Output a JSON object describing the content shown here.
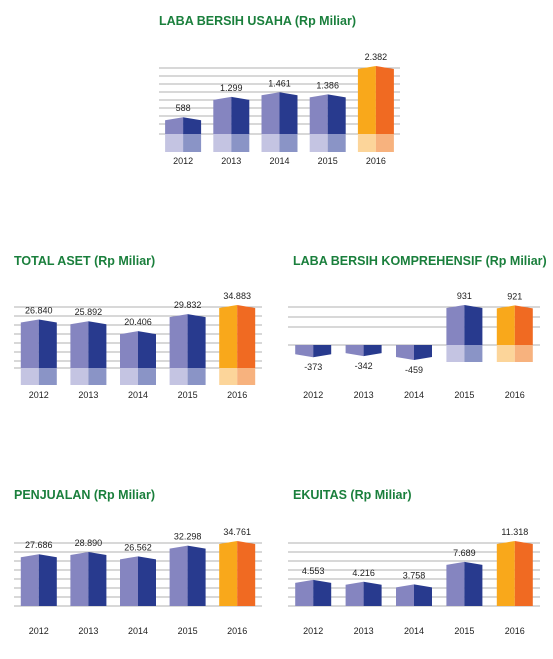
{
  "chart_data": [
    {
      "id": "laba-bersih-usaha",
      "type": "bar",
      "title": "LABA BERSIH USAHA (Rp Miliar)",
      "categories": [
        "2012",
        "2013",
        "2014",
        "2015",
        "2016"
      ],
      "values": [
        588,
        1299,
        1461,
        1386,
        2382
      ],
      "value_labels": [
        "588",
        "1.299",
        "1.461",
        "1.386",
        "2.382"
      ],
      "highlight_index": 4,
      "grid": true
    },
    {
      "id": "total-aset",
      "type": "bar",
      "title": "TOTAL ASET (Rp Miliar)",
      "categories": [
        "2012",
        "2013",
        "2014",
        "2015",
        "2016"
      ],
      "values": [
        26840,
        25892,
        20406,
        29832,
        34883
      ],
      "value_labels": [
        "26.840",
        "25.892",
        "20.406",
        "29.832",
        "34.883"
      ],
      "highlight_index": 4,
      "grid": true
    },
    {
      "id": "laba-bersih-komprehensif",
      "type": "bar",
      "title": "LABA BERSIH KOMPREHENSIF (Rp Miliar)",
      "categories": [
        "2012",
        "2013",
        "2014",
        "2015",
        "2016"
      ],
      "values": [
        -373,
        -342,
        -459,
        931,
        921
      ],
      "value_labels": [
        "-373",
        "-342",
        "-459",
        "931",
        "921"
      ],
      "highlight_index": 4,
      "grid": true
    },
    {
      "id": "penjualan",
      "type": "bar",
      "title": "PENJUALAN (Rp Miliar)",
      "categories": [
        "2012",
        "2013",
        "2014",
        "2015",
        "2016"
      ],
      "values": [
        27686,
        28890,
        26562,
        32298,
        34761
      ],
      "value_labels": [
        "27.686",
        "28.890",
        "26.562",
        "32.298",
        "34.761"
      ],
      "highlight_index": 4,
      "grid": true
    },
    {
      "id": "ekuitas",
      "type": "bar",
      "title": "EKUITAS (Rp Miliar)",
      "categories": [
        "2012",
        "2013",
        "2014",
        "2015",
        "2016"
      ],
      "values": [
        4553,
        4216,
        3758,
        7689,
        11318
      ],
      "value_labels": [
        "4.553",
        "4.216",
        "3.758",
        "7.689",
        "11.318"
      ],
      "highlight_index": 4,
      "grid": true
    }
  ],
  "colors": {
    "title": "#1a7f3c",
    "bar_light": "#8585c0",
    "bar_dark": "#283a8e",
    "bar_reflect_light": "#c4c4e2",
    "bar_reflect_dark": "#8a94c6",
    "highlight_light": "#f9a81b",
    "highlight_dark": "#f06a22",
    "highlight_reflect_light": "#fcd59a",
    "highlight_reflect_dark": "#f7b27e",
    "grid": "#999999"
  }
}
